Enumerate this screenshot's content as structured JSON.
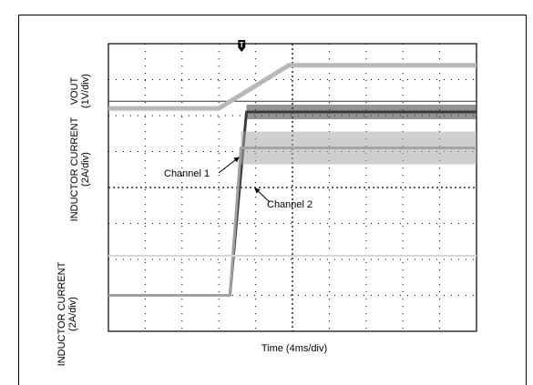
{
  "chart_data": {
    "type": "line",
    "title": "",
    "xlabel": "Time (4ms/div)",
    "y_axes": [
      {
        "label_line1": "VOUT",
        "label_line2": "(1V/div)"
      },
      {
        "label_line1": "INDUCTOR CURRENT",
        "label_line2": "(2A/div)"
      },
      {
        "label_line1": "INDUCTOR CURRENT",
        "label_line2": "(2A/div)"
      }
    ],
    "x_divisions": 10,
    "y_divisions": 8,
    "grid": true,
    "trigger_marker": "T",
    "reference_level_div": 6.4,
    "series": [
      {
        "x": [
          0,
          3.0,
          4.9,
          10
        ],
        "y": [
          6.2,
          6.2,
          7.4,
          7.4
        ]
      },
      {
        "x": [
          0,
          3.3,
          3.75,
          10
        ],
        "y": [
          1.0,
          1.0,
          6.1,
          6.1
        ]
      },
      {
        "x": [
          0,
          3.3,
          3.6,
          10
        ],
        "y": [
          1.0,
          1.0,
          5.1,
          5.1
        ]
      }
    ],
    "annotations": [
      {
        "text": "Channel 1"
      },
      {
        "text": "Channel 2"
      }
    ]
  }
}
